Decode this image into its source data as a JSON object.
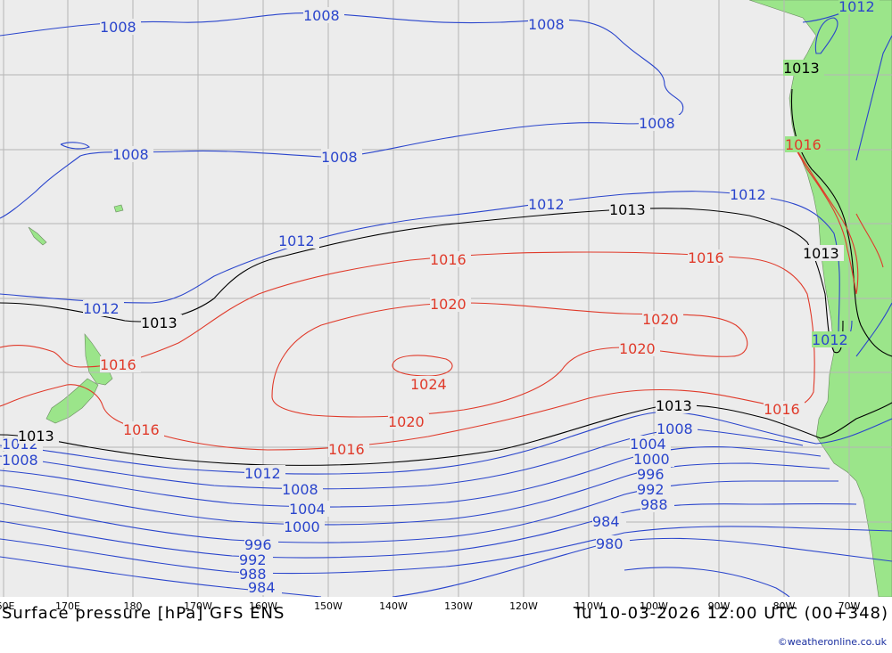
{
  "title": "Surface pressure [hPa] GFS ENS",
  "valid_time": "Tu 10-03-2026 12:00 UTC (00+348)",
  "credit": "©weatheronline.co.uk",
  "longitude_ticks": [
    "60E",
    "170E",
    "180",
    "170W",
    "160W",
    "150W",
    "140W",
    "130W",
    "120W",
    "110W",
    "100W",
    "90W",
    "80W",
    "70W"
  ],
  "colors": {
    "ocean": "#ececec",
    "land": "#9be58a",
    "grid": "#b5b5b5",
    "isobar_low": "#2a45cc",
    "isobar_high": "#e03a2a",
    "isobar_1013": "#000000"
  },
  "isobar_labels": {
    "l1008_a": "1008",
    "l1008_b": "1008",
    "l1008_c": "1008",
    "l1008_d": "1008",
    "l1008_e": "1008",
    "l1008_f": "1008",
    "l1012_a": "1012",
    "l1012_b": "1012",
    "l1012_c": "1012",
    "l1012_d": "1012",
    "l1012_e": "1012",
    "l1012_f": "1012",
    "l1012_g": "1012",
    "l1012_h": "1012",
    "l1013_a": "1013",
    "l1013_b": "1013",
    "l1013_c": "1013",
    "l1013_d": "1013",
    "l1013_e": "1013",
    "l1013_f": "1013",
    "l1016_a": "1016",
    "l1016_b": "1016",
    "l1016_c": "1016",
    "l1016_d": "1016",
    "l1016_e": "1016",
    "l1016_f": "1016",
    "l1016_g": "1016",
    "l1020_a": "1020",
    "l1020_b": "1020",
    "l1020_c": "1020",
    "l1020_d": "1020",
    "l1024": "1024",
    "l1004_a": "1004",
    "l1004_b": "1004",
    "l1000_a": "1000",
    "l1000_b": "1000",
    "l996_a": "996",
    "l996_b": "996",
    "l992_a": "992",
    "l992_b": "992",
    "l988_a": "988",
    "l988_b": "988",
    "l984_a": "984",
    "l984_b": "984",
    "l980": "980"
  }
}
